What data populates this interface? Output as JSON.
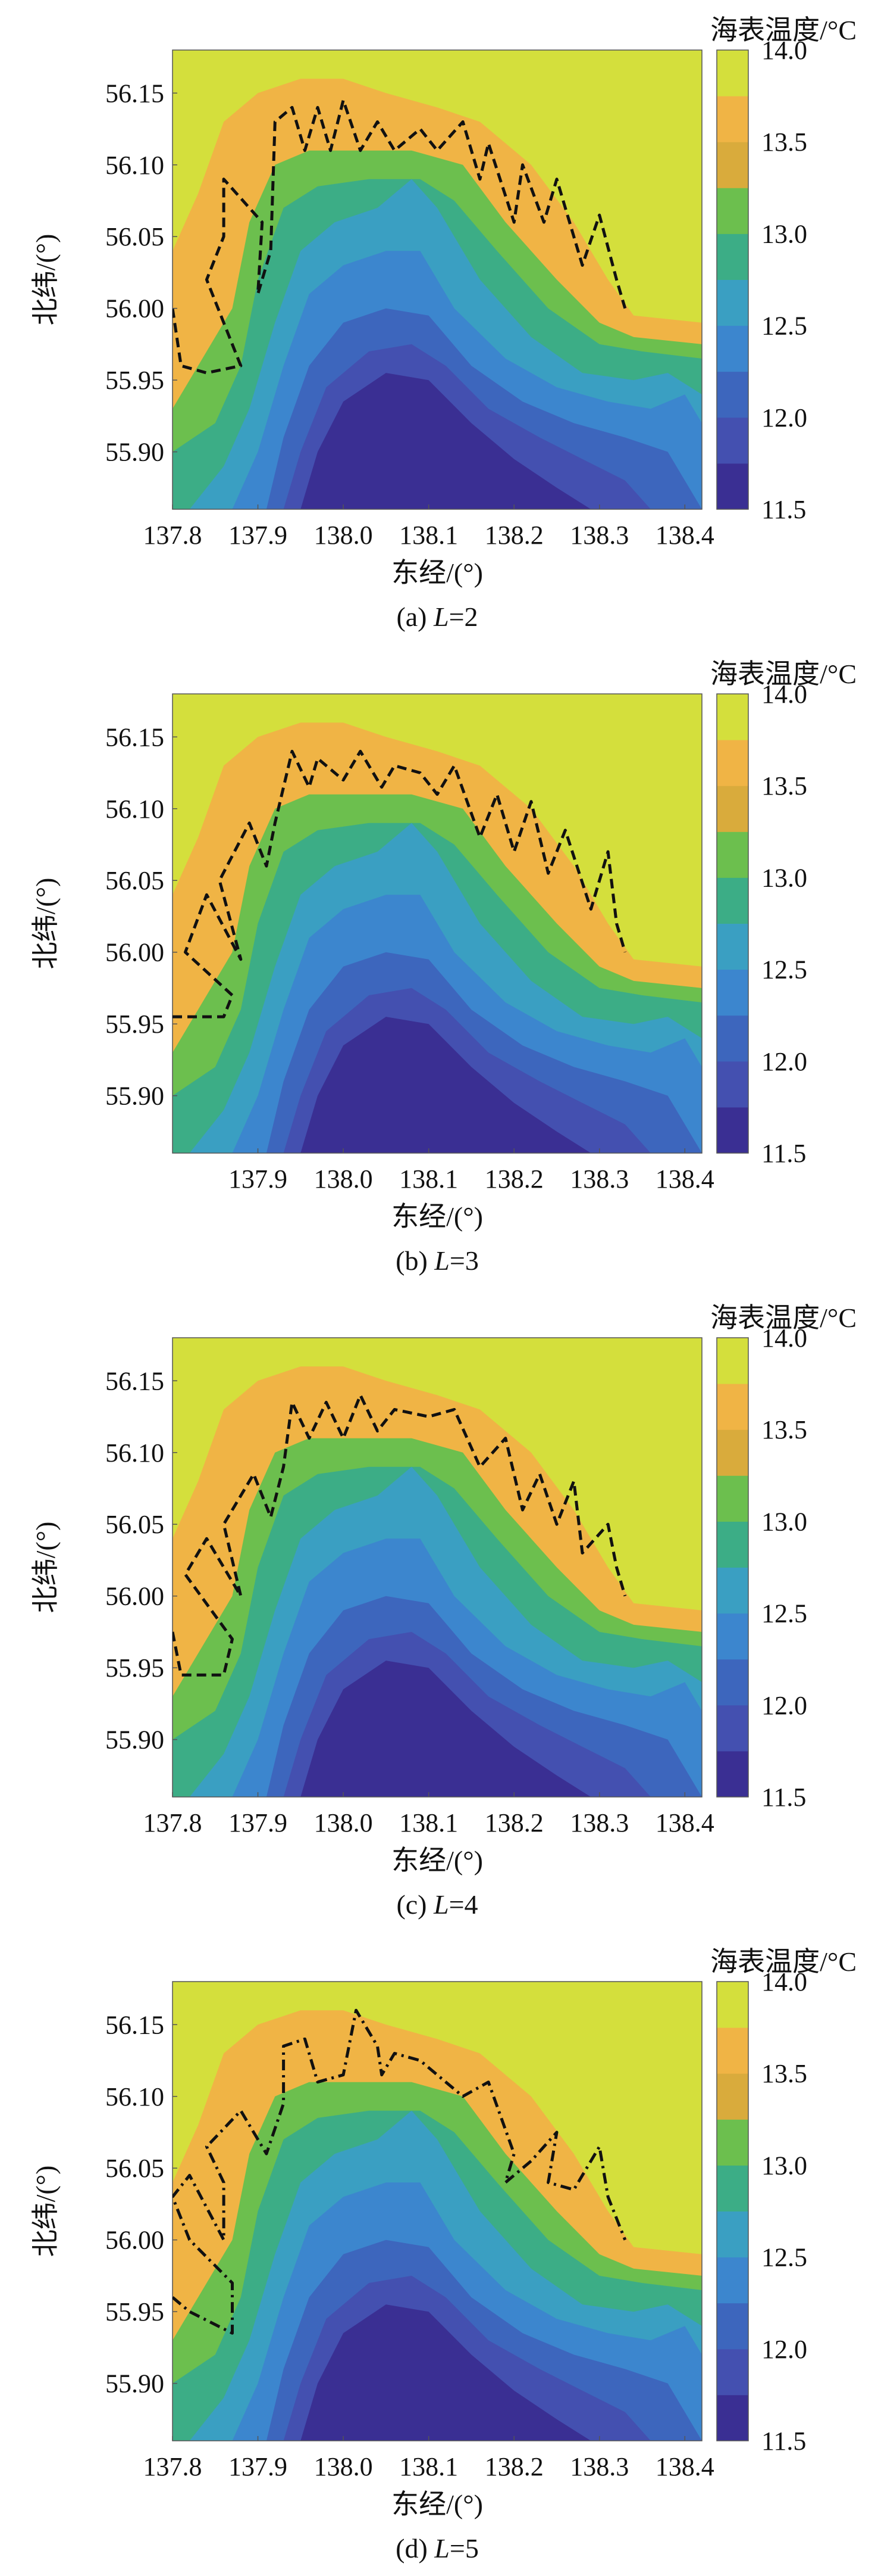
{
  "chart_data": [
    {
      "type": "heatmap",
      "panel_caption": "(a) L=2",
      "caption_prefix": "(a) ",
      "caption_var": "L",
      "caption_value": "=2",
      "xlabel": "东经/(°)",
      "ylabel": "北纬/(°)",
      "colorbar_title": "海表温度/°C",
      "colorbar_ticks": [
        "14.0",
        "13.5",
        "13.0",
        "12.5",
        "12.0",
        "11.5"
      ],
      "colorbar_range": [
        11.5,
        14.0
      ],
      "x_tick_labels": [
        "137.8",
        "137.9",
        "138.0",
        "138.1",
        "138.2",
        "138.3",
        "138.4"
      ],
      "y_tick_labels": [
        "56.15",
        "56.10",
        "56.05",
        "56.00",
        "55.95",
        "55.90"
      ],
      "xlim": [
        137.8,
        138.42
      ],
      "ylim": [
        55.86,
        56.18
      ],
      "front_line_style": "dashed black",
      "front_line": [
        [
          137.8,
          56.0
        ],
        [
          137.81,
          55.96
        ],
        [
          137.84,
          55.955
        ],
        [
          137.88,
          55.96
        ],
        [
          137.84,
          56.02
        ],
        [
          137.86,
          56.05
        ],
        [
          137.86,
          56.09
        ],
        [
          137.905,
          56.06
        ],
        [
          137.9,
          56.01
        ],
        [
          137.915,
          56.04
        ],
        [
          137.92,
          56.13
        ],
        [
          137.94,
          56.14
        ],
        [
          137.955,
          56.11
        ],
        [
          137.97,
          56.14
        ],
        [
          137.985,
          56.11
        ],
        [
          138.0,
          56.145
        ],
        [
          138.02,
          56.11
        ],
        [
          138.04,
          56.13
        ],
        [
          138.06,
          56.11
        ],
        [
          138.09,
          56.125
        ],
        [
          138.11,
          56.11
        ],
        [
          138.14,
          56.13
        ],
        [
          138.16,
          56.09
        ],
        [
          138.17,
          56.115
        ],
        [
          138.2,
          56.06
        ],
        [
          138.21,
          56.1
        ],
        [
          138.235,
          56.06
        ],
        [
          138.25,
          56.09
        ],
        [
          138.28,
          56.03
        ],
        [
          138.3,
          56.065
        ],
        [
          138.32,
          56.02
        ],
        [
          138.33,
          56.0
        ]
      ]
    },
    {
      "type": "heatmap",
      "panel_caption": "(b) L=3",
      "caption_prefix": "(b) ",
      "caption_var": "L",
      "caption_value": "=3",
      "xlabel": "东经/(°)",
      "ylabel": "北纬/(°)",
      "colorbar_title": "海表温度/°C",
      "colorbar_ticks": [
        "14.0",
        "13.5",
        "13.0",
        "12.5",
        "12.0",
        "11.5"
      ],
      "colorbar_range": [
        11.5,
        14.0
      ],
      "x_tick_labels": [
        "137.9",
        "138.0",
        "138.1",
        "138.2",
        "138.3",
        "138.4"
      ],
      "y_tick_labels": [
        "56.15",
        "56.10",
        "56.05",
        "56.00",
        "55.95",
        "55.90"
      ],
      "xlim": [
        137.8,
        138.42
      ],
      "ylim": [
        55.86,
        56.18
      ],
      "front_line_style": "dashed black",
      "front_line": [
        [
          137.8,
          55.955
        ],
        [
          137.86,
          55.955
        ],
        [
          137.87,
          55.97
        ],
        [
          137.815,
          56.0
        ],
        [
          137.84,
          56.04
        ],
        [
          137.88,
          55.995
        ],
        [
          137.855,
          56.05
        ],
        [
          137.89,
          56.09
        ],
        [
          137.91,
          56.06
        ],
        [
          137.92,
          56.09
        ],
        [
          137.94,
          56.14
        ],
        [
          137.96,
          56.115
        ],
        [
          137.97,
          56.135
        ],
        [
          138.0,
          56.12
        ],
        [
          138.02,
          56.14
        ],
        [
          138.045,
          56.115
        ],
        [
          138.06,
          56.13
        ],
        [
          138.09,
          56.125
        ],
        [
          138.11,
          56.11
        ],
        [
          138.13,
          56.13
        ],
        [
          138.16,
          56.08
        ],
        [
          138.18,
          56.11
        ],
        [
          138.2,
          56.07
        ],
        [
          138.22,
          56.105
        ],
        [
          138.24,
          56.055
        ],
        [
          138.26,
          56.085
        ],
        [
          138.29,
          56.03
        ],
        [
          138.31,
          56.07
        ],
        [
          138.32,
          56.02
        ],
        [
          138.33,
          56.0
        ]
      ]
    },
    {
      "type": "heatmap",
      "panel_caption": "(c) L=4",
      "caption_prefix": "(c) ",
      "caption_var": "L",
      "caption_value": "=4",
      "xlabel": "东经/(°)",
      "ylabel": "北纬/(°)",
      "colorbar_title": "海表温度/°C",
      "colorbar_ticks": [
        "14.0",
        "13.5",
        "13.0",
        "12.5",
        "12.0",
        "11.5"
      ],
      "colorbar_range": [
        11.5,
        14.0
      ],
      "x_tick_labels": [
        "137.8",
        "137.9",
        "138.0",
        "138.1",
        "138.2",
        "138.3",
        "138.4"
      ],
      "y_tick_labels": [
        "56.15",
        "56.10",
        "56.05",
        "56.00",
        "55.95",
        "55.90"
      ],
      "xlim": [
        137.8,
        138.42
      ],
      "ylim": [
        55.86,
        56.18
      ],
      "front_line_style": "dashed black",
      "front_line": [
        [
          137.8,
          55.975
        ],
        [
          137.81,
          55.945
        ],
        [
          137.86,
          55.945
        ],
        [
          137.87,
          55.97
        ],
        [
          137.815,
          56.015
        ],
        [
          137.84,
          56.04
        ],
        [
          137.88,
          56.0
        ],
        [
          137.86,
          56.05
        ],
        [
          137.895,
          56.085
        ],
        [
          137.915,
          56.055
        ],
        [
          137.93,
          56.09
        ],
        [
          137.94,
          56.135
        ],
        [
          137.96,
          56.11
        ],
        [
          137.98,
          56.135
        ],
        [
          138.0,
          56.11
        ],
        [
          138.02,
          56.14
        ],
        [
          138.04,
          56.115
        ],
        [
          138.06,
          56.13
        ],
        [
          138.1,
          56.125
        ],
        [
          138.13,
          56.13
        ],
        [
          138.16,
          56.09
        ],
        [
          138.19,
          56.11
        ],
        [
          138.21,
          56.06
        ],
        [
          138.23,
          56.085
        ],
        [
          138.25,
          56.05
        ],
        [
          138.27,
          56.08
        ],
        [
          138.28,
          56.03
        ],
        [
          138.31,
          56.05
        ],
        [
          138.32,
          56.02
        ],
        [
          138.33,
          56.0
        ]
      ]
    },
    {
      "type": "heatmap",
      "panel_caption": "(d) L=5",
      "caption_prefix": "(d) ",
      "caption_var": "L",
      "caption_value": "=5",
      "xlabel": "东经/(°)",
      "ylabel": "北纬/(°)",
      "colorbar_title": "海表温度/°C",
      "colorbar_ticks": [
        "14.0",
        "13.5",
        "13.0",
        "12.5",
        "12.0",
        "11.5"
      ],
      "colorbar_range": [
        11.5,
        14.0
      ],
      "x_tick_labels": [
        "137.8",
        "137.9",
        "138.0",
        "138.1",
        "138.2",
        "138.3",
        "138.4"
      ],
      "y_tick_labels": [
        "56.15",
        "56.10",
        "56.05",
        "56.00",
        "55.95",
        "55.90"
      ],
      "xlim": [
        137.8,
        138.42
      ],
      "ylim": [
        55.86,
        56.18
      ],
      "front_line_style": "dash-dot black",
      "front_line": [
        [
          137.8,
          55.96
        ],
        [
          137.82,
          55.95
        ],
        [
          137.87,
          55.935
        ],
        [
          137.87,
          55.97
        ],
        [
          137.82,
          56.0
        ],
        [
          137.8,
          56.03
        ],
        [
          137.82,
          56.045
        ],
        [
          137.86,
          56.0
        ],
        [
          137.86,
          56.04
        ],
        [
          137.84,
          56.065
        ],
        [
          137.88,
          56.09
        ],
        [
          137.91,
          56.06
        ],
        [
          137.93,
          56.095
        ],
        [
          137.93,
          56.135
        ],
        [
          137.955,
          56.14
        ],
        [
          137.97,
          56.11
        ],
        [
          138.0,
          56.115
        ],
        [
          138.015,
          56.16
        ],
        [
          138.04,
          56.135
        ],
        [
          138.045,
          56.115
        ],
        [
          138.06,
          56.13
        ],
        [
          138.09,
          56.125
        ],
        [
          138.11,
          56.115
        ],
        [
          138.14,
          56.1
        ],
        [
          138.17,
          56.11
        ],
        [
          138.2,
          56.06
        ],
        [
          138.19,
          56.04
        ],
        [
          138.22,
          56.055
        ],
        [
          138.25,
          56.075
        ],
        [
          138.24,
          56.04
        ],
        [
          138.27,
          56.035
        ],
        [
          138.3,
          56.065
        ],
        [
          138.31,
          56.03
        ],
        [
          138.33,
          56.0
        ]
      ]
    }
  ],
  "colors": {
    "warm_13_75": "#d4df3c",
    "warm_13_5": "#f0b445",
    "warm_13_25": "#d9ab3c",
    "mid_13_0": "#6cbf4e",
    "mid_12_75": "#3cad86",
    "mid_12_5": "#3a9fc2",
    "cool_12_25": "#3c86ce",
    "cool_12_0": "#3d66bd",
    "cool_11_75": "#4450b0",
    "cool_11_5": "#3a2f93"
  }
}
